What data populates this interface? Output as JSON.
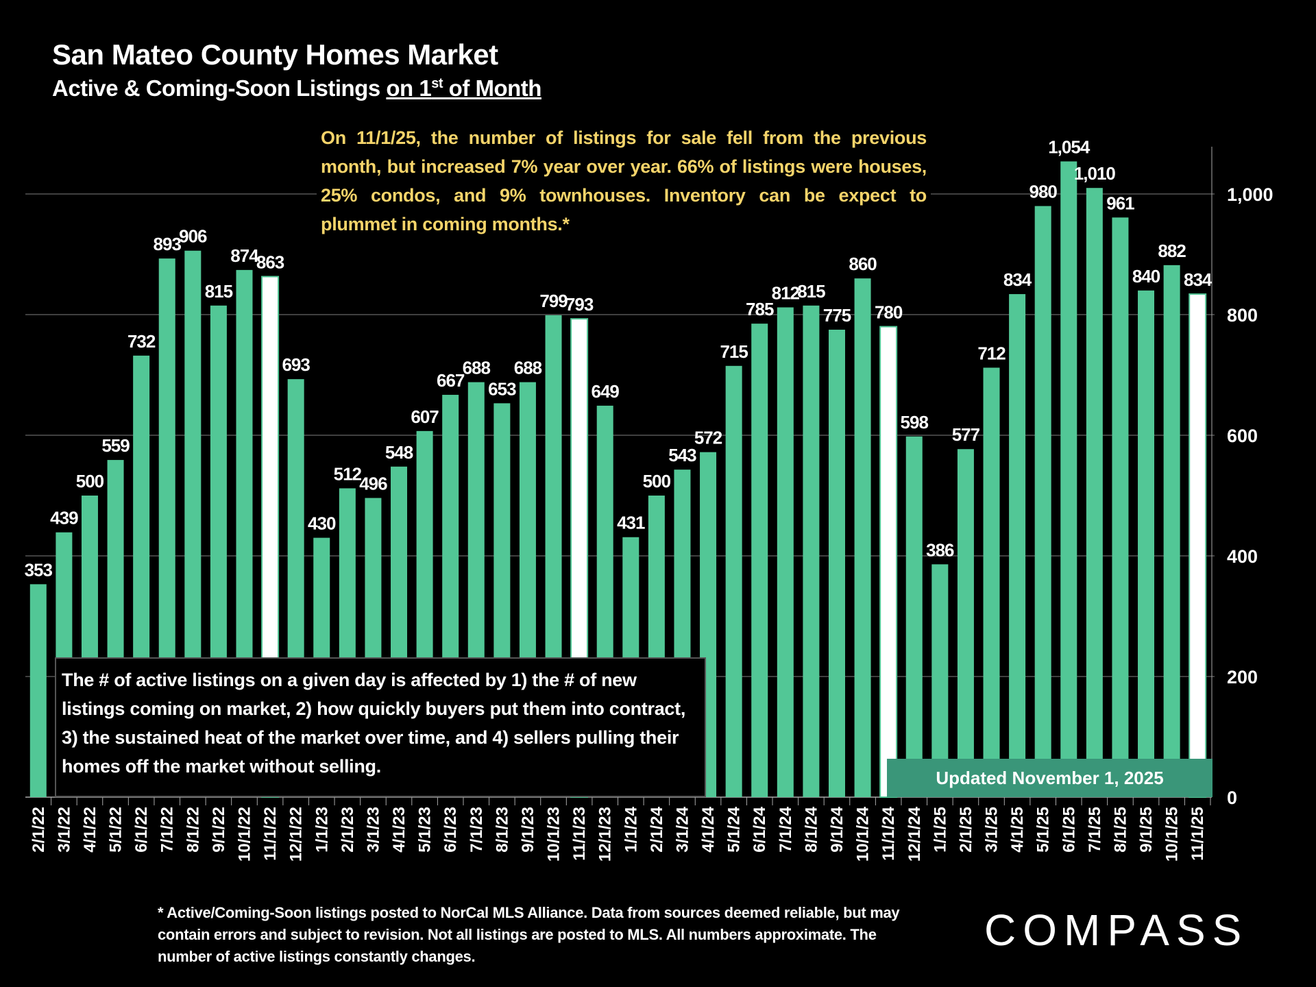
{
  "header": {
    "title": "San Mateo County Homes Market",
    "subtitle_prefix": "Active & Coming-Soon Listings ",
    "subtitle_underlined": "on 1",
    "subtitle_sup": "st",
    "subtitle_suffix": " of Month"
  },
  "note": "On 11/1/25, the number of listings for sale fell from the previous month, but increased 7% year over year. 66% of listings were houses, 25% condos, and 9% townhouses. Inventory can be expect to plummet in coming months.*",
  "explain": "The # of active listings on a given day is affected by 1) the # of new listings coming on market, 2) how quickly buyers put them into contract, 3) the sustained heat of the market over time, and 4) sellers pulling their homes off the market without selling.",
  "updated": "Updated November 1, 2025",
  "footnote": "* Active/Coming-Soon listings posted to NorCal MLS Alliance.  Data from sources deemed reliable, but may contain errors and subject to revision.  Not all listings are posted to MLS. All numbers approximate. The number of active listings constantly changes.",
  "logo": "COMPASS",
  "colors": {
    "bar": "#52c796",
    "highlight": "#ffffff",
    "note_text": "#f5d46a",
    "updated_bg": "#3a9679"
  },
  "chart_data": {
    "type": "bar",
    "categories": [
      "2/1/22",
      "3/1/22",
      "4/1/22",
      "5/1/22",
      "6/1/22",
      "7/1/22",
      "8/1/22",
      "9/1/22",
      "10/1/22",
      "11/1/22",
      "12/1/22",
      "1/1/23",
      "2/1/23",
      "3/1/23",
      "4/1/23",
      "5/1/23",
      "6/1/23",
      "7/1/23",
      "8/1/23",
      "9/1/23",
      "10/1/23",
      "11/1/23",
      "12/1/23",
      "1/1/24",
      "2/1/24",
      "3/1/24",
      "4/1/24",
      "5/1/24",
      "6/1/24",
      "7/1/24",
      "8/1/24",
      "9/1/24",
      "10/1/24",
      "11/1/24",
      "12/1/24",
      "1/1/25",
      "2/1/25",
      "3/1/25",
      "4/1/25",
      "5/1/25",
      "6/1/25",
      "7/1/25",
      "8/1/25",
      "9/1/25",
      "10/1/25",
      "11/1/25"
    ],
    "values": [
      353,
      439,
      500,
      559,
      732,
      893,
      906,
      815,
      874,
      863,
      693,
      430,
      512,
      496,
      548,
      607,
      667,
      688,
      653,
      688,
      799,
      793,
      649,
      431,
      500,
      543,
      572,
      715,
      785,
      812,
      815,
      775,
      860,
      780,
      598,
      386,
      577,
      712,
      834,
      980,
      1054,
      1010,
      961,
      840,
      882,
      834
    ],
    "highlighted": [
      "11/1/22",
      "11/1/23",
      "11/1/24",
      "11/1/25"
    ],
    "yticks": [
      "0",
      "200",
      "400",
      "600",
      "800",
      "1,000"
    ],
    "ytick_values": [
      0,
      200,
      400,
      600,
      800,
      1000
    ],
    "ylim": [
      0,
      1080
    ],
    "y_axis_side": "right",
    "grid": true
  }
}
